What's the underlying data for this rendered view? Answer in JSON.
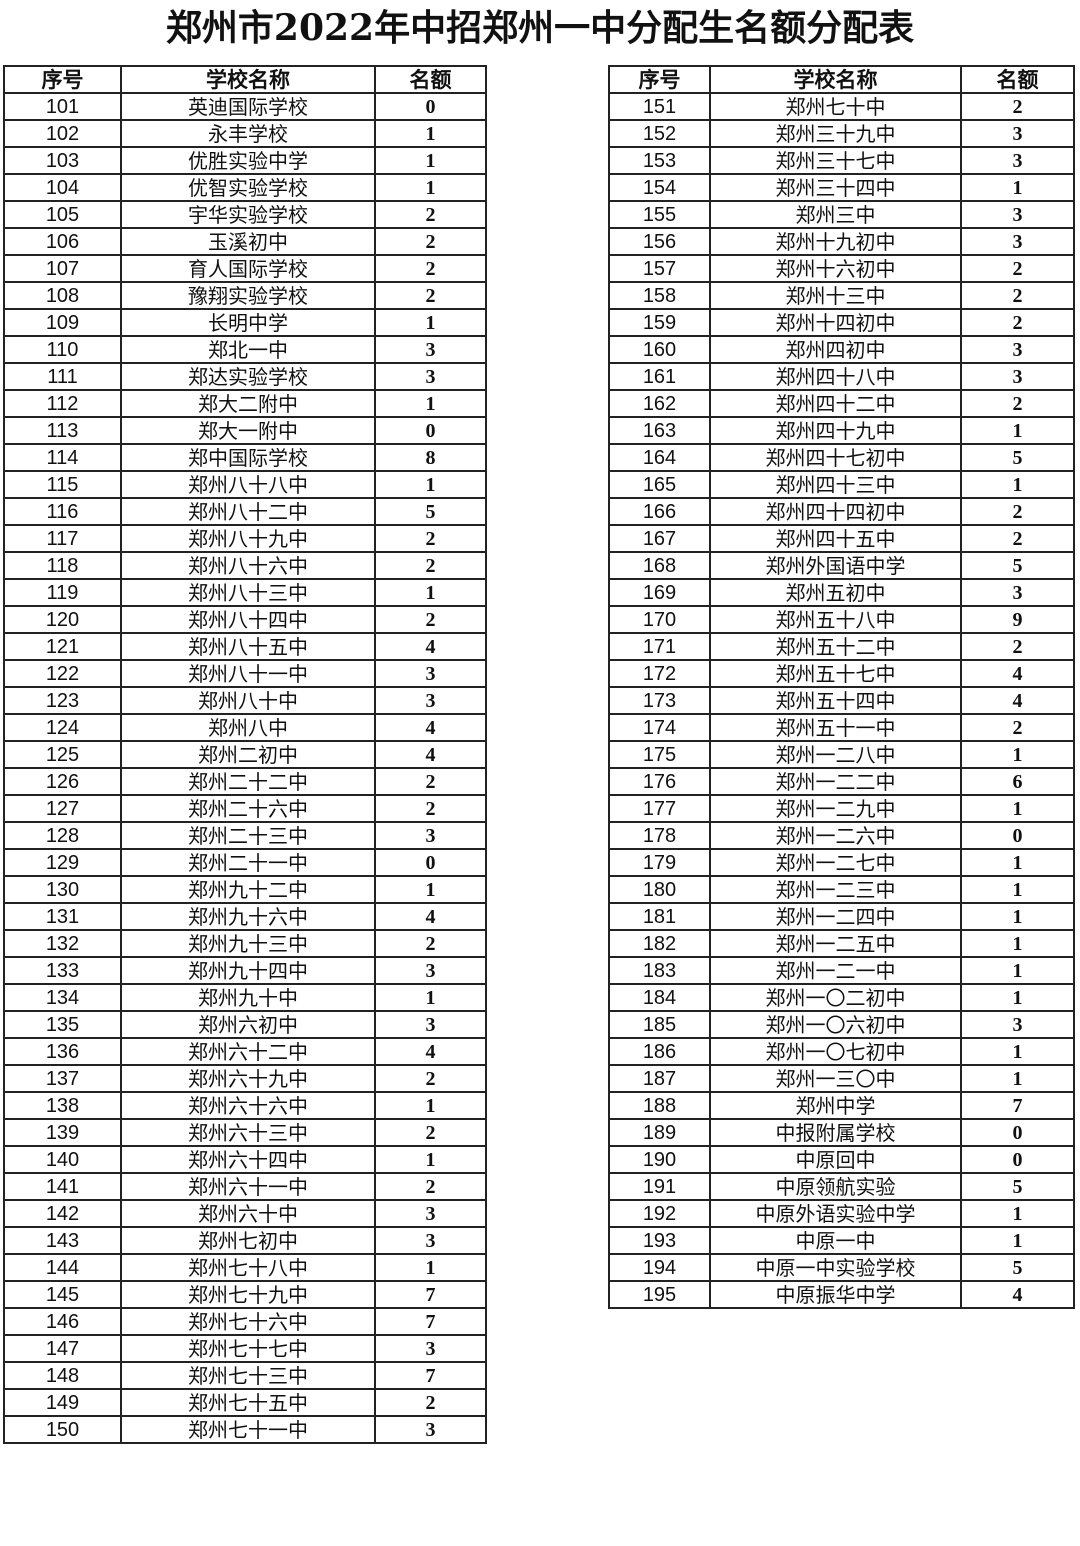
{
  "title": "郑州市2022年中招郑州一中分配生名额分配表",
  "headers": [
    "序号",
    "学校名称",
    "名额"
  ],
  "left_rows": [
    [
      "101",
      "英迪国际学校",
      "0"
    ],
    [
      "102",
      "永丰学校",
      "1"
    ],
    [
      "103",
      "优胜实验中学",
      "1"
    ],
    [
      "104",
      "优智实验学校",
      "1"
    ],
    [
      "105",
      "宇华实验学校",
      "2"
    ],
    [
      "106",
      "玉溪初中",
      "2"
    ],
    [
      "107",
      "育人国际学校",
      "2"
    ],
    [
      "108",
      "豫翔实验学校",
      "2"
    ],
    [
      "109",
      "长明中学",
      "1"
    ],
    [
      "110",
      "郑北一中",
      "3"
    ],
    [
      "111",
      "郑达实验学校",
      "3"
    ],
    [
      "112",
      "郑大二附中",
      "1"
    ],
    [
      "113",
      "郑大一附中",
      "0"
    ],
    [
      "114",
      "郑中国际学校",
      "8"
    ],
    [
      "115",
      "郑州八十八中",
      "1"
    ],
    [
      "116",
      "郑州八十二中",
      "5"
    ],
    [
      "117",
      "郑州八十九中",
      "2"
    ],
    [
      "118",
      "郑州八十六中",
      "2"
    ],
    [
      "119",
      "郑州八十三中",
      "1"
    ],
    [
      "120",
      "郑州八十四中",
      "2"
    ],
    [
      "121",
      "郑州八十五中",
      "4"
    ],
    [
      "122",
      "郑州八十一中",
      "3"
    ],
    [
      "123",
      "郑州八十中",
      "3"
    ],
    [
      "124",
      "郑州八中",
      "4"
    ],
    [
      "125",
      "郑州二初中",
      "4"
    ],
    [
      "126",
      "郑州二十二中",
      "2"
    ],
    [
      "127",
      "郑州二十六中",
      "2"
    ],
    [
      "128",
      "郑州二十三中",
      "3"
    ],
    [
      "129",
      "郑州二十一中",
      "0"
    ],
    [
      "130",
      "郑州九十二中",
      "1"
    ],
    [
      "131",
      "郑州九十六中",
      "4"
    ],
    [
      "132",
      "郑州九十三中",
      "2"
    ],
    [
      "133",
      "郑州九十四中",
      "3"
    ],
    [
      "134",
      "郑州九十中",
      "1"
    ],
    [
      "135",
      "郑州六初中",
      "3"
    ],
    [
      "136",
      "郑州六十二中",
      "4"
    ],
    [
      "137",
      "郑州六十九中",
      "2"
    ],
    [
      "138",
      "郑州六十六中",
      "1"
    ],
    [
      "139",
      "郑州六十三中",
      "2"
    ],
    [
      "140",
      "郑州六十四中",
      "1"
    ],
    [
      "141",
      "郑州六十一中",
      "2"
    ],
    [
      "142",
      "郑州六十中",
      "3"
    ],
    [
      "143",
      "郑州七初中",
      "3"
    ],
    [
      "144",
      "郑州七十八中",
      "1"
    ],
    [
      "145",
      "郑州七十九中",
      "7"
    ],
    [
      "146",
      "郑州七十六中",
      "7"
    ],
    [
      "147",
      "郑州七十七中",
      "3"
    ],
    [
      "148",
      "郑州七十三中",
      "7"
    ],
    [
      "149",
      "郑州七十五中",
      "2"
    ],
    [
      "150",
      "郑州七十一中",
      "3"
    ]
  ],
  "right_rows": [
    [
      "151",
      "郑州七十中",
      "2"
    ],
    [
      "152",
      "郑州三十九中",
      "3"
    ],
    [
      "153",
      "郑州三十七中",
      "3"
    ],
    [
      "154",
      "郑州三十四中",
      "1"
    ],
    [
      "155",
      "郑州三中",
      "3"
    ],
    [
      "156",
      "郑州十九初中",
      "3"
    ],
    [
      "157",
      "郑州十六初中",
      "2"
    ],
    [
      "158",
      "郑州十三中",
      "2"
    ],
    [
      "159",
      "郑州十四初中",
      "2"
    ],
    [
      "160",
      "郑州四初中",
      "3"
    ],
    [
      "161",
      "郑州四十八中",
      "3"
    ],
    [
      "162",
      "郑州四十二中",
      "2"
    ],
    [
      "163",
      "郑州四十九中",
      "1"
    ],
    [
      "164",
      "郑州四十七初中",
      "5"
    ],
    [
      "165",
      "郑州四十三中",
      "1"
    ],
    [
      "166",
      "郑州四十四初中",
      "2"
    ],
    [
      "167",
      "郑州四十五中",
      "2"
    ],
    [
      "168",
      "郑州外国语中学",
      "5"
    ],
    [
      "169",
      "郑州五初中",
      "3"
    ],
    [
      "170",
      "郑州五十八中",
      "9"
    ],
    [
      "171",
      "郑州五十二中",
      "2"
    ],
    [
      "172",
      "郑州五十七中",
      "4"
    ],
    [
      "173",
      "郑州五十四中",
      "4"
    ],
    [
      "174",
      "郑州五十一中",
      "2"
    ],
    [
      "175",
      "郑州一二八中",
      "1"
    ],
    [
      "176",
      "郑州一二二中",
      "6"
    ],
    [
      "177",
      "郑州一二九中",
      "1"
    ],
    [
      "178",
      "郑州一二六中",
      "0"
    ],
    [
      "179",
      "郑州一二七中",
      "1"
    ],
    [
      "180",
      "郑州一二三中",
      "1"
    ],
    [
      "181",
      "郑州一二四中",
      "1"
    ],
    [
      "182",
      "郑州一二五中",
      "1"
    ],
    [
      "183",
      "郑州一二一中",
      "1"
    ],
    [
      "184",
      "郑州一〇二初中",
      "1"
    ],
    [
      "185",
      "郑州一〇六初中",
      "3"
    ],
    [
      "186",
      "郑州一〇七初中",
      "1"
    ],
    [
      "187",
      "郑州一三〇中",
      "1"
    ],
    [
      "188",
      "郑州中学",
      "7"
    ],
    [
      "189",
      "中报附属学校",
      "0"
    ],
    [
      "190",
      "中原回中",
      "0"
    ],
    [
      "191",
      "中原领航实验",
      "5"
    ],
    [
      "192",
      "中原外语实验中学",
      "1"
    ],
    [
      "193",
      "中原一中",
      "1"
    ],
    [
      "194",
      "中原一中实验学校",
      "5"
    ],
    [
      "195",
      "中原振华中学",
      "4"
    ]
  ]
}
